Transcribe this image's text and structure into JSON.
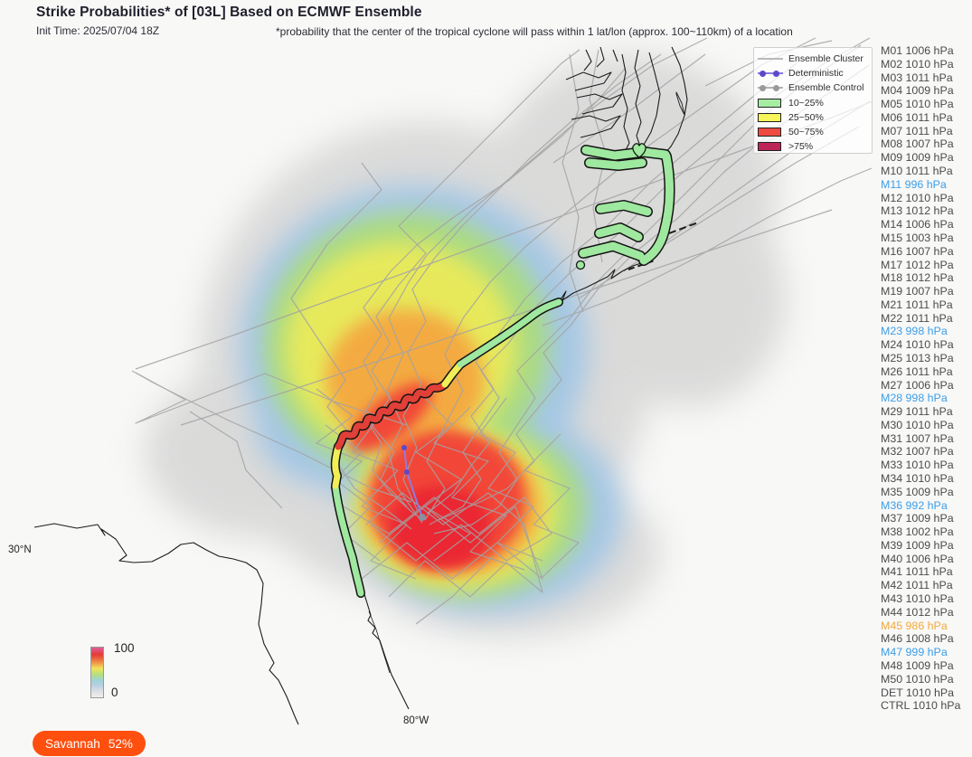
{
  "header": {
    "title": "Strike Probabilities* of [03L] Based on ECMWF Ensemble",
    "init_time": "Init Time: 2025/07/04 18Z",
    "footnote": "*probability that the center of the tropical cyclone will pass within 1 lat/lon (approx. 100~110km) of a location"
  },
  "legend": {
    "items": [
      {
        "label": "Ensemble Cluster",
        "marker": "line",
        "color": "#b9b9b9"
      },
      {
        "label": "Deterministic",
        "marker": "line-dots",
        "color": "#8a7ce0",
        "dot": "#5b49cc"
      },
      {
        "label": "Ensemble Control",
        "marker": "line-dots",
        "color": "#b3b3b3",
        "dot": "#9a9a9a"
      },
      {
        "label": "10~25%",
        "marker": "swatch",
        "color": "#a6eda4"
      },
      {
        "label": "25~50%",
        "marker": "swatch",
        "color": "#f6f65b"
      },
      {
        "label": "50~75%",
        "marker": "swatch",
        "color": "#ee4a40"
      },
      {
        "label": ">75%",
        "marker": "swatch",
        "color": "#bd2457"
      }
    ]
  },
  "members_unit": "hPa",
  "members": [
    {
      "id": "M01",
      "pressure": "1006",
      "state": "normal"
    },
    {
      "id": "M02",
      "pressure": "1010",
      "state": "normal"
    },
    {
      "id": "M03",
      "pressure": "1011",
      "state": "normal"
    },
    {
      "id": "M04",
      "pressure": "1009",
      "state": "normal"
    },
    {
      "id": "M05",
      "pressure": "1010",
      "state": "normal"
    },
    {
      "id": "M06",
      "pressure": "1011",
      "state": "normal"
    },
    {
      "id": "M07",
      "pressure": "1011",
      "state": "normal"
    },
    {
      "id": "M08",
      "pressure": "1007",
      "state": "normal"
    },
    {
      "id": "M09",
      "pressure": "1009",
      "state": "normal"
    },
    {
      "id": "M10",
      "pressure": "1011",
      "state": "normal"
    },
    {
      "id": "M11",
      "pressure": "996",
      "state": "low"
    },
    {
      "id": "M12",
      "pressure": "1010",
      "state": "normal"
    },
    {
      "id": "M13",
      "pressure": "1012",
      "state": "normal"
    },
    {
      "id": "M14",
      "pressure": "1006",
      "state": "normal"
    },
    {
      "id": "M15",
      "pressure": "1003",
      "state": "normal"
    },
    {
      "id": "M16",
      "pressure": "1007",
      "state": "normal"
    },
    {
      "id": "M17",
      "pressure": "1012",
      "state": "normal"
    },
    {
      "id": "M18",
      "pressure": "1012",
      "state": "normal"
    },
    {
      "id": "M19",
      "pressure": "1007",
      "state": "normal"
    },
    {
      "id": "M21",
      "pressure": "1011",
      "state": "normal"
    },
    {
      "id": "M22",
      "pressure": "1011",
      "state": "normal"
    },
    {
      "id": "M23",
      "pressure": "998",
      "state": "low"
    },
    {
      "id": "M24",
      "pressure": "1010",
      "state": "normal"
    },
    {
      "id": "M25",
      "pressure": "1013",
      "state": "normal"
    },
    {
      "id": "M26",
      "pressure": "1011",
      "state": "normal"
    },
    {
      "id": "M27",
      "pressure": "1006",
      "state": "normal"
    },
    {
      "id": "M28",
      "pressure": "998",
      "state": "low"
    },
    {
      "id": "M29",
      "pressure": "1011",
      "state": "normal"
    },
    {
      "id": "M30",
      "pressure": "1010",
      "state": "normal"
    },
    {
      "id": "M31",
      "pressure": "1007",
      "state": "normal"
    },
    {
      "id": "M32",
      "pressure": "1007",
      "state": "normal"
    },
    {
      "id": "M33",
      "pressure": "1010",
      "state": "normal"
    },
    {
      "id": "M34",
      "pressure": "1010",
      "state": "normal"
    },
    {
      "id": "M35",
      "pressure": "1009",
      "state": "normal"
    },
    {
      "id": "M36",
      "pressure": "992",
      "state": "low"
    },
    {
      "id": "M37",
      "pressure": "1009",
      "state": "normal"
    },
    {
      "id": "M38",
      "pressure": "1002",
      "state": "normal"
    },
    {
      "id": "M39",
      "pressure": "1009",
      "state": "normal"
    },
    {
      "id": "M40",
      "pressure": "1006",
      "state": "normal"
    },
    {
      "id": "M41",
      "pressure": "1011",
      "state": "normal"
    },
    {
      "id": "M42",
      "pressure": "1011",
      "state": "normal"
    },
    {
      "id": "M43",
      "pressure": "1010",
      "state": "normal"
    },
    {
      "id": "M44",
      "pressure": "1012",
      "state": "normal"
    },
    {
      "id": "M45",
      "pressure": "986",
      "state": "lowest"
    },
    {
      "id": "M46",
      "pressure": "1008",
      "state": "normal"
    },
    {
      "id": "M47",
      "pressure": "999",
      "state": "low"
    },
    {
      "id": "M48",
      "pressure": "1009",
      "state": "normal"
    },
    {
      "id": "M50",
      "pressure": "1010",
      "state": "normal"
    },
    {
      "id": "DET",
      "pressure": "1010",
      "state": "normal"
    },
    {
      "id": "CTRL",
      "pressure": "1010",
      "state": "normal"
    }
  ],
  "colors": {
    "member_normal": "#4b4b4b",
    "member_low": "#3d9ee8",
    "member_lowest": "#f2a93b",
    "badge_bg": "#ff4f0f",
    "prob_green": "#9fe89f",
    "prob_yellow": "#f2ee55",
    "prob_red": "#e04038"
  },
  "colorbar": {
    "max": "100",
    "min": "0"
  },
  "map_labels": {
    "lat": "30°N",
    "lon": "80°W"
  },
  "badge": {
    "location": "Savannah",
    "probability": "52%"
  }
}
